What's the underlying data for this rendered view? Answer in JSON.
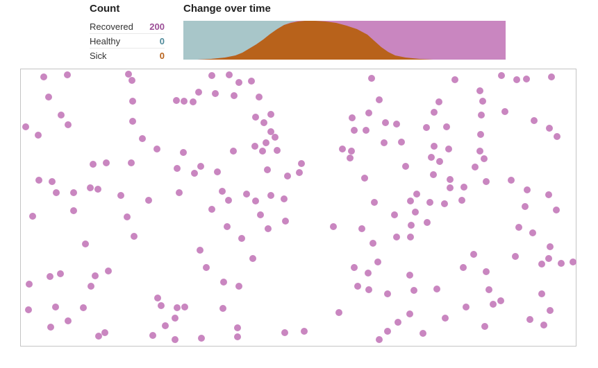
{
  "count": {
    "title": "Count",
    "rows": [
      {
        "label": "Recovered",
        "value": "200",
        "color": "#9b4d96"
      },
      {
        "label": "Healthy",
        "value": "0",
        "color": "#4f8a9a"
      },
      {
        "label": "Sick",
        "value": "0",
        "color": "#b8621b"
      }
    ]
  },
  "history_chart": {
    "title": "Change over time",
    "colors": {
      "healthy": "#a8c6c9",
      "sick": "#b8621b",
      "recovered": "#c986c0"
    }
  },
  "simulation": {
    "dot_color": "#c986c0",
    "population": 200
  }
}
